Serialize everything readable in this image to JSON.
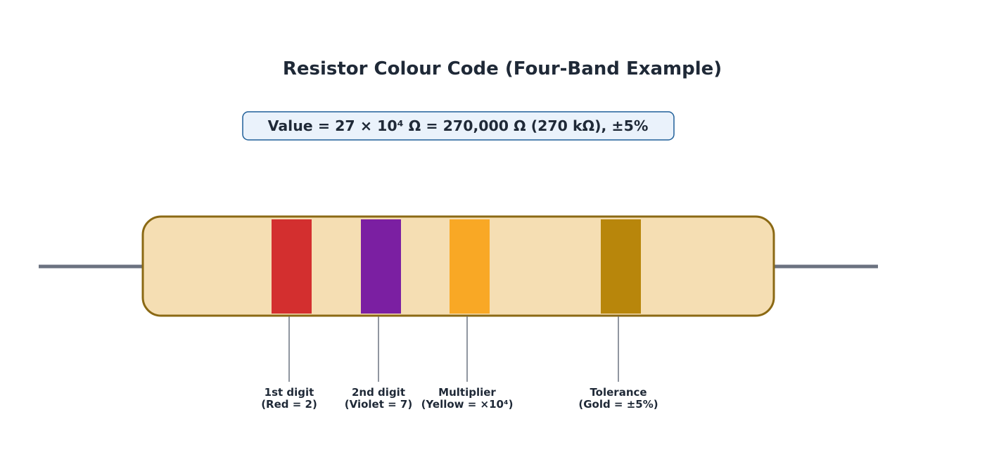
{
  "title": "Resistor Colour Code (Four-Band Example)",
  "value_box": "Value = 27 × 10⁴ Ω = 270,000 Ω (270 kΩ), ±5%",
  "bands": [
    {
      "color": "#d32f2f",
      "label": [
        "1st digit",
        "(Red = 2)"
      ]
    },
    {
      "color": "#7b1fa2",
      "label": [
        "2nd digit",
        "(Violet = 7)"
      ]
    },
    {
      "color": "#f9a825",
      "label": [
        "Multiplier",
        "(Yellow = ×10⁴)"
      ]
    },
    {
      "color": "#b8860b",
      "label": [
        "Tolerance",
        "(Gold = ±5%)"
      ]
    }
  ]
}
